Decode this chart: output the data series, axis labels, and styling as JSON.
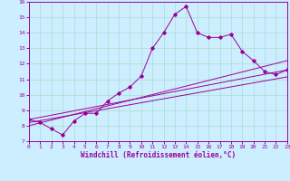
{
  "xlabel": "Windchill (Refroidissement éolien,°C)",
  "bg_color": "#cceeff",
  "grid_color": "#aaddcc",
  "line_color": "#990099",
  "xlim": [
    0,
    23
  ],
  "ylim": [
    7,
    16
  ],
  "xticks": [
    0,
    1,
    2,
    3,
    4,
    5,
    6,
    7,
    8,
    9,
    10,
    11,
    12,
    13,
    14,
    15,
    16,
    17,
    18,
    19,
    20,
    21,
    22,
    23
  ],
  "yticks": [
    7,
    8,
    9,
    10,
    11,
    12,
    13,
    14,
    15,
    16
  ],
  "series1_x": [
    0,
    1,
    2,
    3,
    4,
    5,
    6,
    7,
    8,
    9,
    10,
    11,
    12,
    13,
    14,
    15,
    16,
    17,
    18,
    19,
    20,
    21,
    22,
    23
  ],
  "series1_y": [
    8.4,
    8.2,
    7.8,
    7.4,
    8.3,
    8.8,
    8.8,
    9.6,
    10.1,
    10.5,
    11.2,
    13.0,
    14.0,
    15.2,
    15.7,
    14.0,
    13.7,
    13.7,
    13.9,
    12.8,
    12.2,
    11.5,
    11.3,
    11.6
  ],
  "line2_x": [
    0,
    23
  ],
  "line2_y": [
    8.4,
    11.6
  ],
  "line3_x": [
    0,
    23
  ],
  "line3_y": [
    8.2,
    11.15
  ],
  "line4_x": [
    0,
    23
  ],
  "line4_y": [
    8.0,
    12.2
  ]
}
